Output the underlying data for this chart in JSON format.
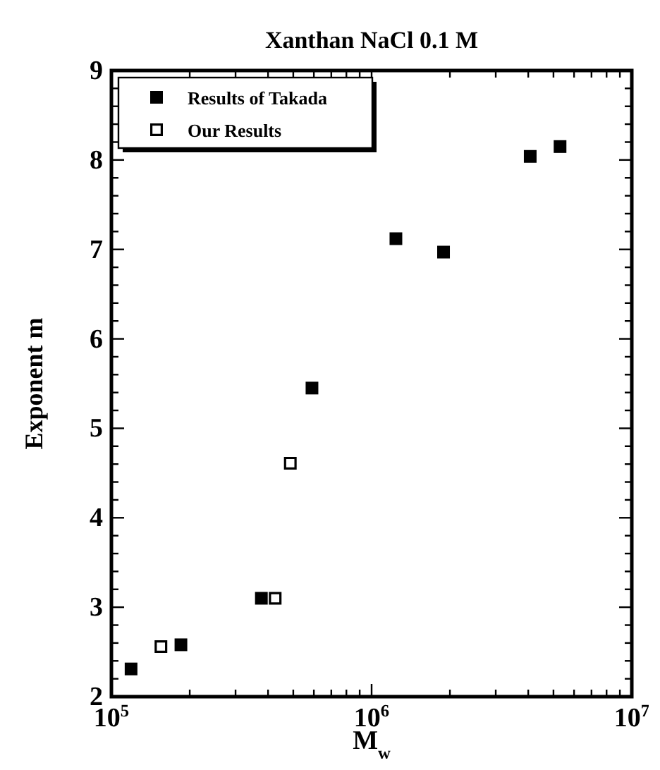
{
  "chart_data": {
    "type": "scatter",
    "title": "Xanthan NaCl 0.1 M",
    "xlabel": "M$_{w}$",
    "ylabel": "Exponent m",
    "log": "x",
    "xlim": [
      100000,
      10000000
    ],
    "xticks": [
      {
        "value": 100000,
        "label": "10$^{5}$"
      },
      {
        "value": 200000,
        "label": null
      },
      {
        "value": 300000,
        "label": null
      },
      {
        "value": 400000,
        "label": null
      },
      {
        "value": 500000,
        "label": null
      },
      {
        "value": 600000,
        "label": null
      },
      {
        "value": 700000,
        "label": null
      },
      {
        "value": 800000,
        "label": null
      },
      {
        "value": 900000,
        "label": null
      },
      {
        "value": 1000000,
        "label": "10$^{6}$"
      },
      {
        "value": 2000000,
        "label": null
      },
      {
        "value": 3000000,
        "label": null
      },
      {
        "value": 4000000,
        "label": null
      },
      {
        "value": 5000000,
        "label": null
      },
      {
        "value": 6000000,
        "label": null
      },
      {
        "value": 7000000,
        "label": null
      },
      {
        "value": 8000000,
        "label": null
      },
      {
        "value": 9000000,
        "label": null
      },
      {
        "value": 10000000,
        "label": "10$^{7}$"
      }
    ],
    "ylim": [
      2,
      9
    ],
    "yticks": [
      2,
      {
        "value": 2.2,
        "label": null
      },
      {
        "value": 2.4,
        "label": null
      },
      {
        "value": 2.6,
        "label": null
      },
      {
        "value": 2.8,
        "label": null
      },
      3,
      {
        "value": 3.2,
        "label": null
      },
      {
        "value": 3.4,
        "label": null
      },
      {
        "value": 3.6,
        "label": null
      },
      {
        "value": 3.8,
        "label": null
      },
      4,
      {
        "value": 4.2,
        "label": null
      },
      {
        "value": 4.4,
        "label": null
      },
      {
        "value": 4.6,
        "label": null
      },
      {
        "value": 4.8,
        "label": null
      },
      5,
      {
        "value": 5.2,
        "label": null
      },
      {
        "value": 5.4,
        "label": null
      },
      {
        "value": 5.6,
        "label": null
      },
      {
        "value": 5.8,
        "label": null
      },
      6,
      {
        "value": 6.2,
        "label": null
      },
      {
        "value": 6.4,
        "label": null
      },
      {
        "value": 6.6,
        "label": null
      },
      {
        "value": 6.8,
        "label": null
      },
      7,
      {
        "value": 7.2,
        "label": null
      },
      {
        "value": 7.4,
        "label": null
      },
      {
        "value": 7.6,
        "label": null
      },
      {
        "value": 7.8,
        "label": null
      },
      8,
      {
        "value": 8.2,
        "label": null
      },
      {
        "value": 8.4,
        "label": null
      },
      {
        "value": 8.6,
        "label": null
      },
      {
        "value": 8.8,
        "label": null
      },
      9
    ],
    "grid": false,
    "legend": "top left",
    "marker": "square",
    "series": [
      {
        "name": "Results of Takada",
        "color": "#000000",
        "x": [
          119000,
          185000,
          377000,
          590000,
          1240000,
          1890000,
          4070000,
          5300000
        ],
        "values": [
          2.31,
          2.58,
          3.1,
          5.45,
          7.12,
          6.97,
          8.04,
          8.15
        ]
      },
      {
        "name": "Our Results",
        "color": "#000000",
        "x": [
          155000,
          426000,
          487000
        ],
        "values": [
          2.56,
          3.1,
          4.61
        ]
      }
    ]
  }
}
